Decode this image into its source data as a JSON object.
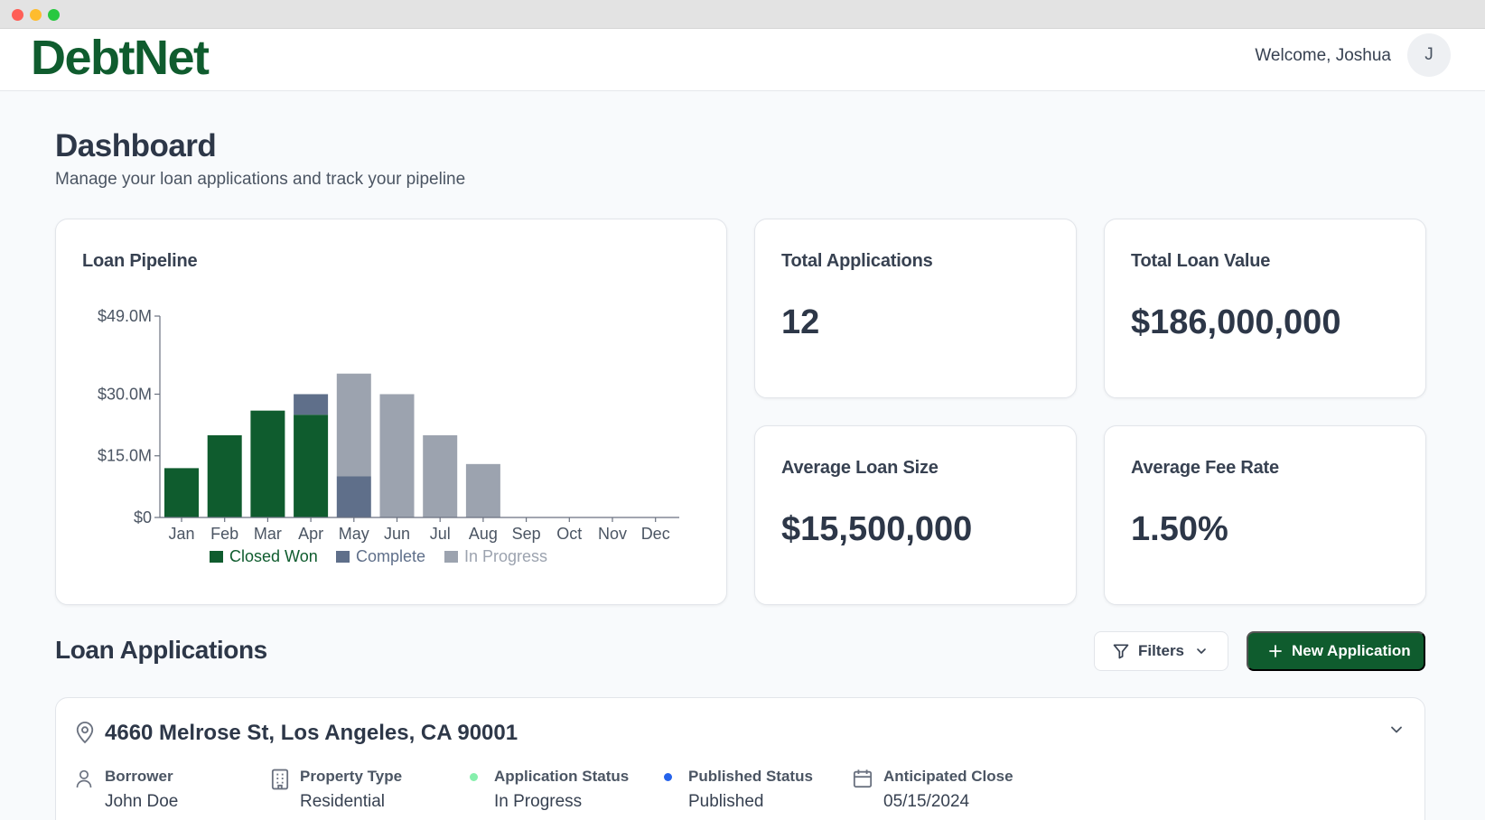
{
  "colors": {
    "brand": "#0f5c2e",
    "closed_won": "#0f5c2e",
    "complete": "#5f6f8a",
    "in_progress": "#9ca3af",
    "status_in_progress": "#86efac",
    "status_published": "#2563eb"
  },
  "header": {
    "logo": "DebtNet",
    "welcome": "Welcome, Joshua",
    "avatar_initial": "J"
  },
  "page": {
    "title": "Dashboard",
    "subtitle": "Manage your loan applications and track your pipeline"
  },
  "pipeline": {
    "title": "Loan Pipeline"
  },
  "chart_data": {
    "type": "bar",
    "stacked": true,
    "title": "Loan Pipeline",
    "categories": [
      "Jan",
      "Feb",
      "Mar",
      "Apr",
      "May",
      "Jun",
      "Jul",
      "Aug",
      "Sep",
      "Oct",
      "Nov",
      "Dec"
    ],
    "series": [
      {
        "name": "Closed Won",
        "color": "#0f5c2e",
        "values": [
          12,
          20,
          26,
          25,
          0,
          0,
          0,
          0,
          0,
          0,
          0,
          0
        ]
      },
      {
        "name": "Complete",
        "color": "#5f6f8a",
        "values": [
          0,
          0,
          0,
          5,
          10,
          0,
          0,
          0,
          0,
          0,
          0,
          0
        ]
      },
      {
        "name": "In Progress",
        "color": "#9ca3af",
        "values": [
          0,
          0,
          0,
          0,
          25,
          30,
          20,
          13,
          0,
          0,
          0,
          0
        ]
      }
    ],
    "ytick_values": [
      0,
      15,
      30,
      49
    ],
    "ytick_labels": [
      "$0",
      "$15.0M",
      "$30.0M",
      "$49.0M"
    ],
    "ylim": [
      0,
      49
    ],
    "units": "$M",
    "legend": "bottom",
    "grid": false
  },
  "stats": [
    {
      "title": "Total Applications",
      "value": "12"
    },
    {
      "title": "Total Loan Value",
      "value": "$186,000,000"
    },
    {
      "title": "Average Loan Size",
      "value": "$15,500,000"
    },
    {
      "title": "Average Fee Rate",
      "value": "1.50%"
    }
  ],
  "applications": {
    "title": "Loan Applications",
    "filters_label": "Filters",
    "new_label": "New Application",
    "items": [
      {
        "address": "4660 Melrose St, Los Angeles, CA 90001",
        "borrower_label": "Borrower",
        "borrower": "John Doe",
        "property_type_label": "Property Type",
        "property_type": "Residential",
        "application_status_label": "Application Status",
        "application_status": "In Progress",
        "published_status_label": "Published Status",
        "published_status": "Published",
        "anticipated_close_label": "Anticipated Close",
        "anticipated_close": "05/15/2024"
      }
    ]
  }
}
